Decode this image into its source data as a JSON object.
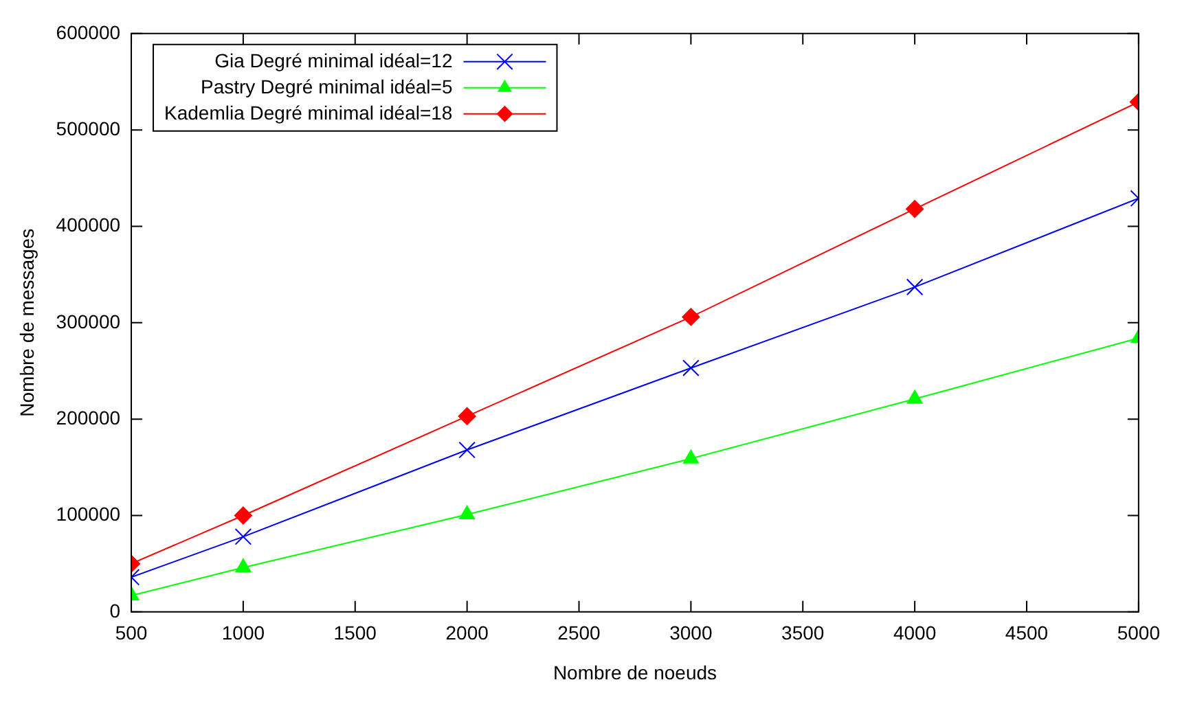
{
  "chart_data": {
    "type": "line",
    "xlabel": "Nombre de noeuds",
    "ylabel": "Nombre de messages",
    "x": [
      500,
      1000,
      2000,
      3000,
      4000,
      5000
    ],
    "series": [
      {
        "name": "Gia Degré minimal idéal=12",
        "color": "#0000ff",
        "marker": "cross",
        "values": [
          36000,
          78000,
          168000,
          253000,
          337000,
          429000
        ]
      },
      {
        "name": "Pastry Degré minimal idéal=5",
        "color": "#00ff00",
        "marker": "triangle",
        "values": [
          17000,
          46000,
          101000,
          159000,
          221000,
          284000
        ]
      },
      {
        "name": "Kademlia Degré minimal idéal=18",
        "color": "#ff0000",
        "marker": "diamond",
        "values": [
          50000,
          100000,
          203000,
          306000,
          418000,
          529000
        ]
      }
    ],
    "xlim": [
      500,
      5000
    ],
    "xticks": [
      500,
      1000,
      1500,
      2000,
      2500,
      3000,
      3500,
      4000,
      4500,
      5000
    ],
    "ylim": [
      0,
      600000
    ],
    "yticks": [
      0,
      100000,
      200000,
      300000,
      400000,
      500000,
      600000
    ],
    "grid": false,
    "legend": "top left"
  }
}
